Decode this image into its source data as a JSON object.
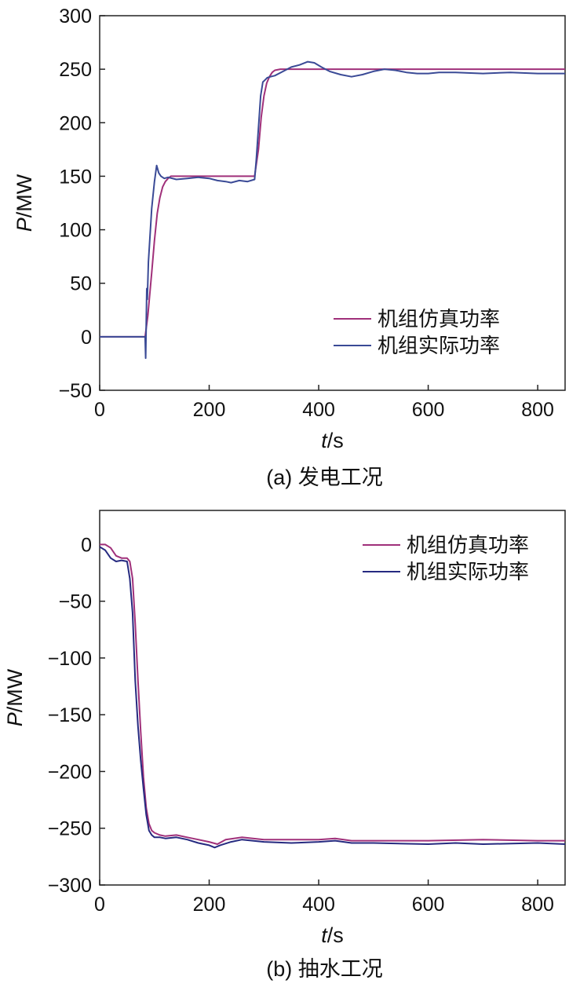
{
  "chart_data": [
    {
      "type": "line",
      "caption": "(a) 发电工况",
      "xlabel_italic": "t",
      "xlabel_unit": "/s",
      "ylabel_italic": "P",
      "ylabel_unit": "/MW",
      "xlim": [
        0,
        850
      ],
      "ylim": [
        -50,
        300
      ],
      "xticks": [
        0,
        200,
        400,
        600,
        800
      ],
      "yticks": [
        -50,
        0,
        50,
        100,
        150,
        200,
        250,
        300
      ],
      "legend_position": "bottom-right",
      "grid": false,
      "series": [
        {
          "name": "机组仿真功率",
          "color": "#a0307a",
          "x": [
            0,
            83,
            88,
            95,
            100,
            105,
            110,
            115,
            120,
            125,
            130,
            140,
            200,
            283,
            290,
            295,
            300,
            305,
            310,
            315,
            320,
            330,
            350,
            500,
            850
          ],
          "y": [
            0,
            0,
            20,
            60,
            90,
            115,
            130,
            140,
            145,
            148,
            150,
            150,
            150,
            150,
            175,
            205,
            225,
            237,
            243,
            247,
            249,
            250,
            250,
            250,
            250
          ]
        },
        {
          "name": "机组实际功率",
          "color": "#3a4a96",
          "x": [
            0,
            83,
            84,
            86,
            87,
            89,
            92,
            95,
            100,
            104,
            108,
            112,
            118,
            125,
            140,
            160,
            180,
            200,
            215,
            230,
            240,
            255,
            270,
            283,
            286,
            290,
            294,
            298,
            302,
            306,
            312,
            320,
            335,
            350,
            365,
            380,
            392,
            405,
            420,
            440,
            460,
            480,
            500,
            520,
            540,
            560,
            580,
            600,
            620,
            650,
            700,
            750,
            800,
            850
          ],
          "y": [
            0,
            0,
            -20,
            45,
            35,
            70,
            95,
            120,
            145,
            160,
            153,
            150,
            148,
            149,
            147,
            148,
            149,
            148,
            146,
            145,
            144,
            146,
            145,
            147,
            165,
            195,
            225,
            238,
            240,
            242,
            243,
            244,
            248,
            252,
            254,
            257,
            256,
            252,
            248,
            245,
            243,
            245,
            248,
            250,
            249,
            247,
            246,
            246,
            247,
            247,
            246,
            247,
            246,
            246
          ]
        }
      ]
    },
    {
      "type": "line",
      "caption": "(b) 抽水工况",
      "xlabel_italic": "t",
      "xlabel_unit": "/s",
      "ylabel_italic": "P",
      "ylabel_unit": "/MW",
      "xlim": [
        0,
        850
      ],
      "ylim": [
        -300,
        30
      ],
      "xticks": [
        0,
        200,
        400,
        600,
        800
      ],
      "yticks": [
        -300,
        -250,
        -200,
        -150,
        -100,
        -50,
        0
      ],
      "legend_position": "top-right",
      "grid": false,
      "series": [
        {
          "name": "机组仿真功率",
          "color": "#a0307a",
          "x": [
            0,
            10,
            20,
            30,
            40,
            50,
            55,
            60,
            65,
            70,
            75,
            80,
            85,
            90,
            95,
            100,
            105,
            110,
            120,
            140,
            160,
            180,
            200,
            215,
            230,
            260,
            300,
            400,
            430,
            460,
            500,
            600,
            700,
            800,
            850
          ],
          "y": [
            0,
            0,
            -3,
            -10,
            -12,
            -12,
            -15,
            -30,
            -70,
            -120,
            -165,
            -205,
            -232,
            -246,
            -252,
            -254,
            -255,
            -256,
            -257,
            -256,
            -258,
            -260,
            -262,
            -264,
            -260,
            -258,
            -260,
            -260,
            -259,
            -261,
            -261,
            -261,
            -260,
            -261,
            -261
          ]
        },
        {
          "name": "机组实际功率",
          "color": "#262a80",
          "x": [
            0,
            10,
            20,
            30,
            40,
            50,
            55,
            60,
            65,
            70,
            75,
            80,
            85,
            90,
            95,
            100,
            110,
            120,
            140,
            160,
            180,
            200,
            210,
            220,
            240,
            260,
            300,
            350,
            400,
            430,
            460,
            500,
            600,
            650,
            700,
            800,
            850
          ],
          "y": [
            -2,
            -5,
            -12,
            -15,
            -14,
            -15,
            -30,
            -60,
            -120,
            -160,
            -190,
            -215,
            -238,
            -252,
            -256,
            -258,
            -258,
            -259,
            -258,
            -260,
            -263,
            -265,
            -267,
            -265,
            -262,
            -260,
            -262,
            -263,
            -262,
            -261,
            -263,
            -263,
            -264,
            -263,
            -264,
            -263,
            -264
          ]
        }
      ]
    }
  ]
}
